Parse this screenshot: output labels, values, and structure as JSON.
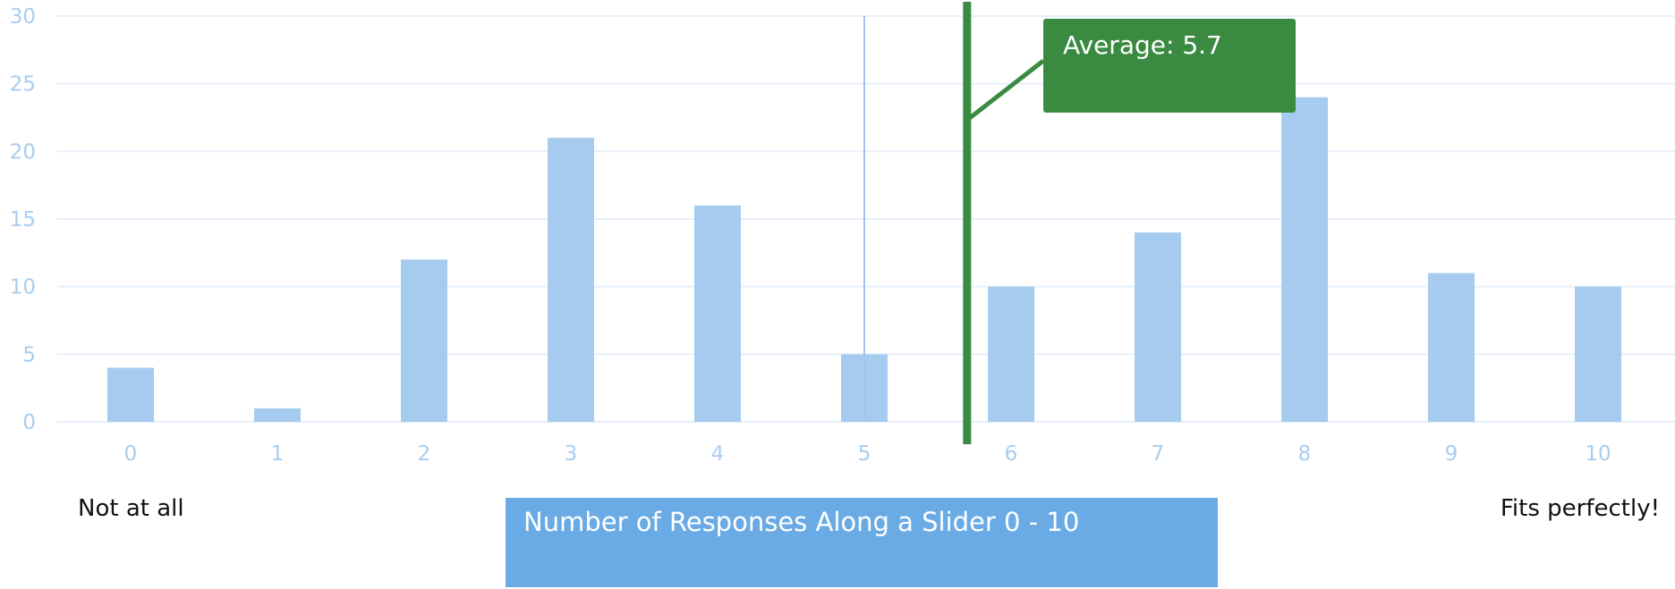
{
  "chart_data": {
    "type": "bar",
    "categories": [
      "0",
      "1",
      "2",
      "3",
      "4",
      "5",
      "6",
      "7",
      "8",
      "9",
      "10"
    ],
    "values": [
      4,
      1,
      12,
      21,
      16,
      5,
      10,
      14,
      24,
      11,
      10
    ],
    "ylim": [
      0,
      30
    ],
    "yticks": [
      0,
      5,
      10,
      15,
      20,
      25,
      30
    ],
    "grid": true,
    "average": {
      "value": 5.7,
      "label": "Average: 5.7",
      "color": "#3a8a41"
    },
    "reference_line_x": 5,
    "left_label": "Not at all",
    "right_label": "Fits perfectly!",
    "caption": "Number of Responses Along a Slider 0 - 10",
    "colors": {
      "bar": "#a5cbef",
      "grid": "#e6f0fa",
      "tick": "#a9cdee",
      "reference_line": "#9ec6ee",
      "caption_bg": "#6aabe5"
    }
  }
}
